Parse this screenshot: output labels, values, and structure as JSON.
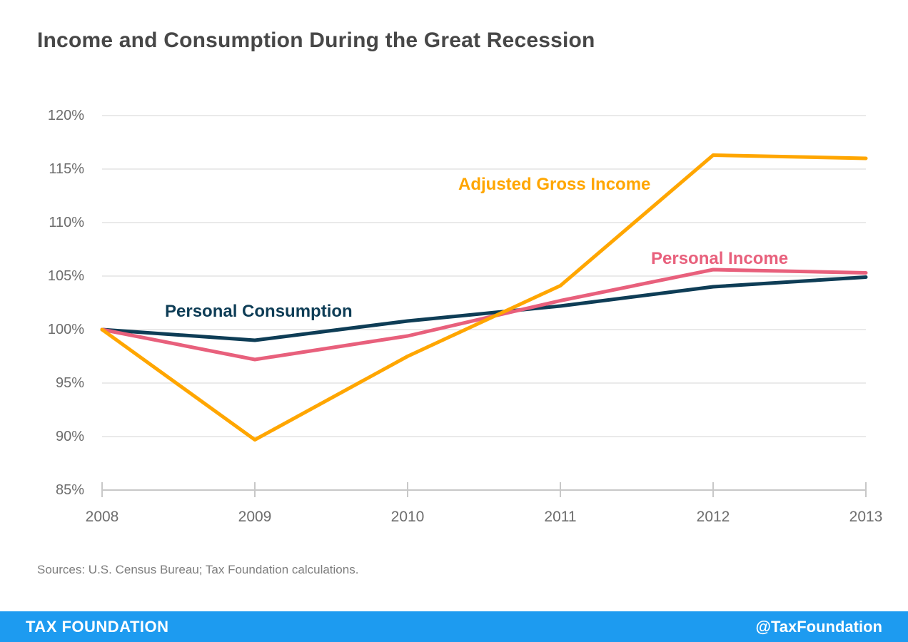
{
  "header": {
    "title": "Income and Consumption During the Great Recession"
  },
  "chart_data": {
    "type": "line",
    "x": [
      2008,
      2009,
      2010,
      2011,
      2012,
      2013
    ],
    "x_labels": [
      "2008",
      "2009",
      "2010",
      "2011",
      "2012",
      "2013"
    ],
    "ylim": [
      85,
      120
    ],
    "y_ticks": [
      85,
      90,
      95,
      100,
      105,
      110,
      115,
      120
    ],
    "y_tick_labels": [
      "85%",
      "90%",
      "95%",
      "100%",
      "105%",
      "110%",
      "115%",
      "120%"
    ],
    "grid": "horizontal",
    "legend_position": "inline-labels",
    "title": "Income and Consumption During the Great Recession",
    "xlabel": "",
    "ylabel": "",
    "series": [
      {
        "name": "Personal Consumption",
        "color": "#0E3D56",
        "values": [
          100,
          99.0,
          100.8,
          102.2,
          104.0,
          104.9
        ]
      },
      {
        "name": "Personal Income",
        "color": "#E8607C",
        "values": [
          100,
          97.2,
          99.4,
          102.7,
          105.6,
          105.3
        ]
      },
      {
        "name": "Adjusted Gross Income",
        "color": "#FFA600",
        "values": [
          100,
          89.7,
          97.5,
          104.1,
          116.3,
          116.0
        ]
      }
    ],
    "colors": {
      "gridline": "#E3E3E3",
      "axis": "#C8C8C8",
      "tick_label": "#6D6D6D"
    }
  },
  "sources": {
    "text": "Sources: U.S. Census Bureau; Tax Foundation calculations."
  },
  "footer": {
    "brand": "TAX FOUNDATION",
    "handle": "@TaxFoundation",
    "background": "#1D9BF0"
  }
}
